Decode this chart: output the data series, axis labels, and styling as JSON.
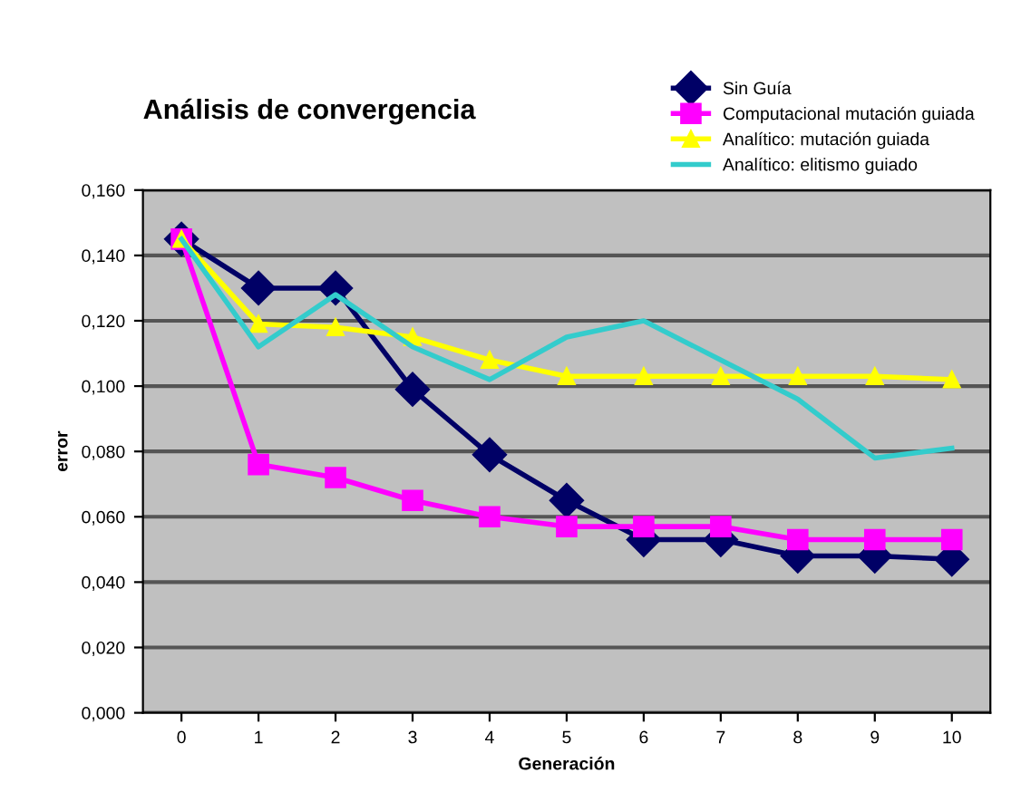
{
  "chart_data": {
    "type": "line",
    "title": "Análisis de convergencia",
    "xlabel": "Generación",
    "ylabel": "error",
    "categories": [
      "0",
      "1",
      "2",
      "3",
      "4",
      "5",
      "6",
      "7",
      "8",
      "9",
      "10"
    ],
    "series": [
      {
        "name": "Sin Guía",
        "color": "#000066",
        "marker": "diamond",
        "values": [
          0.145,
          0.13,
          0.13,
          0.099,
          0.079,
          0.065,
          0.053,
          0.053,
          0.048,
          0.048,
          0.047
        ]
      },
      {
        "name": "Computacional mutación guiada",
        "color": "#ff00ff",
        "marker": "square",
        "values": [
          0.145,
          0.076,
          0.072,
          0.065,
          0.06,
          0.057,
          0.057,
          0.057,
          0.053,
          0.053,
          0.053
        ]
      },
      {
        "name": "Analítico: mutación guiada",
        "color": "#ffff00",
        "marker": "triangle",
        "values": [
          0.145,
          0.119,
          0.118,
          0.115,
          0.108,
          0.103,
          0.103,
          0.103,
          0.103,
          0.103,
          0.102
        ]
      },
      {
        "name": "Analítico: elitismo guiado",
        "color": "#33cccc",
        "marker": "none",
        "values": [
          0.145,
          0.112,
          0.128,
          0.112,
          0.102,
          0.115,
          0.12,
          0.108,
          0.096,
          0.078,
          0.081
        ]
      }
    ],
    "ylim": [
      0,
      0.16
    ],
    "yticks": [
      {
        "value": 0,
        "label": "0,000"
      },
      {
        "value": 0.02,
        "label": "0,020"
      },
      {
        "value": 0.04,
        "label": "0,040"
      },
      {
        "value": 0.06,
        "label": "0,060"
      },
      {
        "value": 0.08,
        "label": "0,080"
      },
      {
        "value": 0.1,
        "label": "0,100"
      },
      {
        "value": 0.12,
        "label": "0,120"
      },
      {
        "value": 0.14,
        "label": "0,140"
      },
      {
        "value": 0.16,
        "label": "0,160"
      }
    ],
    "grid": "y",
    "legend": "top right"
  }
}
